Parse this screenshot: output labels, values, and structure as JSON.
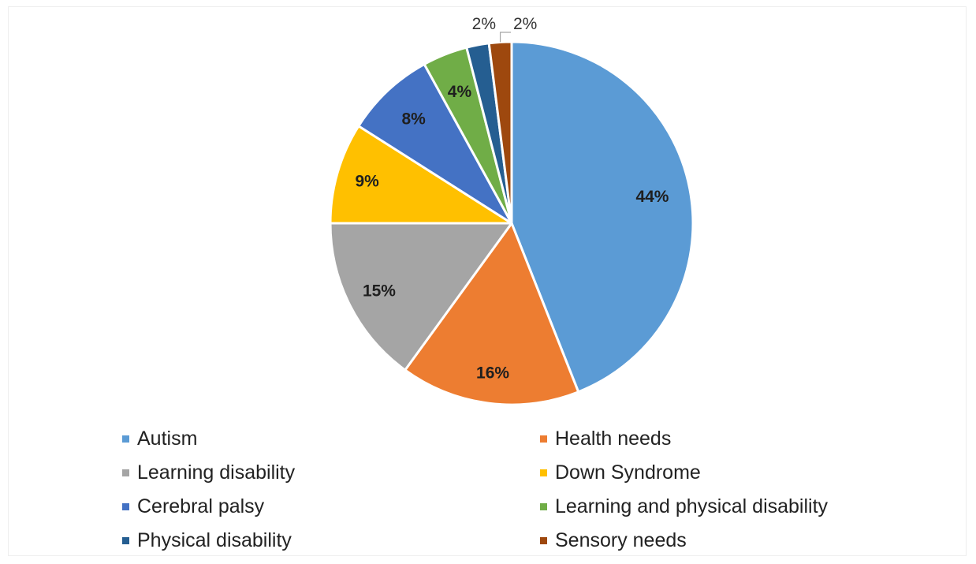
{
  "chart_data": {
    "type": "pie",
    "title": "",
    "slices": [
      {
        "label": "Autism",
        "value": 44,
        "data_label": "44%",
        "color": "#5b9bd5"
      },
      {
        "label": "Health needs",
        "value": 16,
        "data_label": "16%",
        "color": "#ed7d31"
      },
      {
        "label": "Learning disability",
        "value": 15,
        "data_label": "15%",
        "color": "#a5a5a5"
      },
      {
        "label": "Down Syndrome",
        "value": 9,
        "data_label": "9%",
        "color": "#ffc000"
      },
      {
        "label": "Cerebral palsy",
        "value": 8,
        "data_label": "8%",
        "color": "#4472c4"
      },
      {
        "label": "Learning and physical disability",
        "value": 4,
        "data_label": "4%",
        "color": "#70ad47"
      },
      {
        "label": "Physical disability",
        "value": 2,
        "data_label": "2%",
        "color": "#255e91"
      },
      {
        "label": "Sensory needs",
        "value": 2,
        "data_label": "2%",
        "color": "#9e480e"
      }
    ],
    "legend_position": "bottom",
    "start": "12 o'clock, clockwise"
  }
}
